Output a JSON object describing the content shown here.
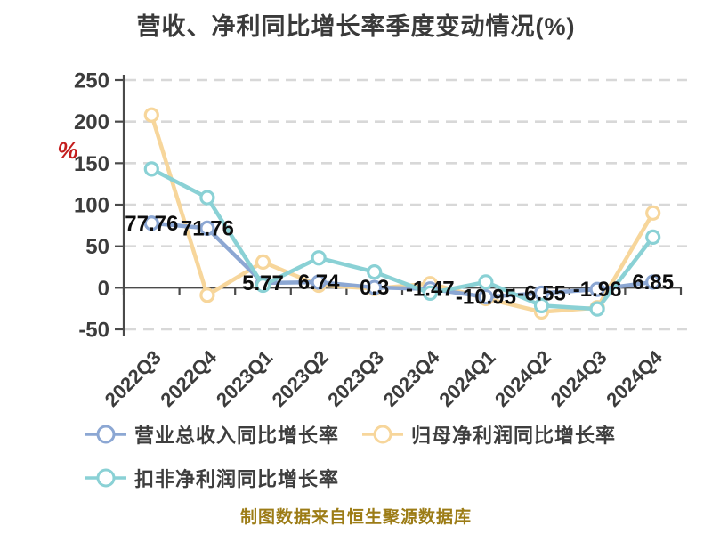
{
  "title": "营收、净利同比增长率季度变动情况(%)",
  "footer_note": "制图数据来自恒生聚源数据库",
  "colors": {
    "title_text": "#3a3a3a",
    "axis": "#4a4a4a",
    "grid": "#d8d8d8",
    "tick_label": "#3c3c3c",
    "point_label": "#0d0d0d",
    "unit_label": "#c41e1e",
    "legend_text": "#3e3e3e",
    "footer_text": "#9c7c16",
    "marker_fill": "#ffffff"
  },
  "chart_data": {
    "type": "line",
    "title": "营收、净利同比增长率季度变动情况(%)",
    "categories": [
      "2022Q3",
      "2022Q4",
      "2023Q1",
      "2023Q2",
      "2023Q3",
      "2023Q4",
      "2024Q1",
      "2024Q2",
      "2024Q3",
      "2024Q4"
    ],
    "series": [
      {
        "name": "营业总收入同比增长率",
        "color": "#8ca7d3",
        "values": [
          77.76,
          71.76,
          5.77,
          6.74,
          0.3,
          -1.47,
          -10.95,
          -6.55,
          -1.96,
          6.85
        ],
        "point_labels": [
          "77.76",
          "71.76",
          "5.77",
          "6.74",
          "0.3",
          "-1.47",
          "-10.95",
          "-6.55",
          "-1.96",
          "6.85"
        ]
      },
      {
        "name": "归母净利润同比增长率",
        "color": "#f7d69b",
        "values": [
          208,
          -9,
          31,
          3,
          -1,
          5,
          -13,
          -29,
          -24,
          90
        ]
      },
      {
        "name": "扣非净利润同比增长率",
        "color": "#8ad1d5",
        "values": [
          143,
          108.5,
          3,
          36,
          19,
          -6.5,
          7,
          -21.5,
          -25.5,
          61
        ]
      }
    ],
    "y_axis": {
      "unit": "%",
      "min": -50,
      "max": 250,
      "step": 50,
      "tick_labels": [
        "250",
        "200",
        "150",
        "100",
        "50",
        "0",
        "-50"
      ]
    },
    "x_axis_rotation_deg": -45,
    "grid": true,
    "grid_style": "dashed",
    "legend_position": "bottom-left",
    "legend_rows": [
      [
        0,
        1
      ],
      [
        2
      ]
    ]
  }
}
